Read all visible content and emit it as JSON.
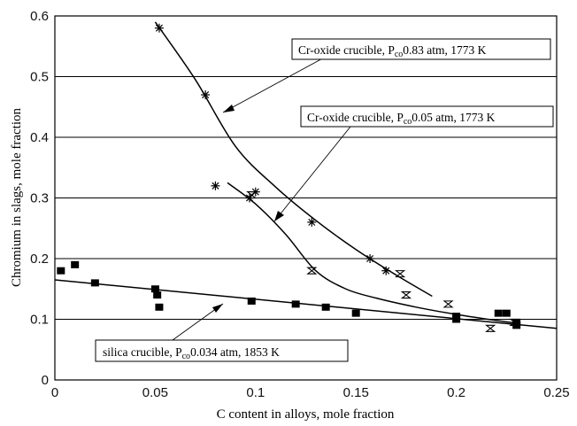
{
  "chart_data": {
    "type": "scatter",
    "xlabel": "C content in alloys, mole fraction",
    "ylabel": "Chromium in slags, mole fraction",
    "xlim": [
      0,
      0.25
    ],
    "ylim": [
      0,
      0.6
    ],
    "x_ticks": [
      "0",
      "0.05",
      "0.1",
      "0.15",
      "0.2",
      "0.25"
    ],
    "y_ticks": [
      "0",
      "0.1",
      "0.2",
      "0.3",
      "0.4",
      "0.5",
      "0.6"
    ],
    "grid": "horizontal",
    "series": [
      {
        "marker": "asterisk",
        "points": [
          [
            0.052,
            0.58
          ],
          [
            0.075,
            0.47
          ],
          [
            0.08,
            0.32
          ],
          [
            0.097,
            0.3
          ],
          [
            0.1,
            0.31
          ],
          [
            0.128,
            0.26
          ],
          [
            0.157,
            0.2
          ],
          [
            0.165,
            0.18
          ]
        ],
        "fit": [
          [
            0.05,
            0.59
          ],
          [
            0.07,
            0.495
          ],
          [
            0.09,
            0.385
          ],
          [
            0.11,
            0.318
          ],
          [
            0.13,
            0.263
          ],
          [
            0.15,
            0.215
          ],
          [
            0.17,
            0.173
          ],
          [
            0.188,
            0.138
          ]
        ]
      },
      {
        "marker": "hourglass",
        "points": [
          [
            0.098,
            0.305
          ],
          [
            0.128,
            0.18
          ],
          [
            0.172,
            0.175
          ],
          [
            0.175,
            0.14
          ],
          [
            0.196,
            0.125
          ],
          [
            0.217,
            0.085
          ],
          [
            0.229,
            0.095
          ]
        ],
        "fit": [
          [
            0.086,
            0.325
          ],
          [
            0.1,
            0.29
          ],
          [
            0.115,
            0.24
          ],
          [
            0.13,
            0.18
          ],
          [
            0.145,
            0.15
          ],
          [
            0.16,
            0.135
          ],
          [
            0.18,
            0.12
          ],
          [
            0.2,
            0.108
          ],
          [
            0.22,
            0.098
          ],
          [
            0.232,
            0.093
          ]
        ]
      },
      {
        "marker": "square",
        "points": [
          [
            0.003,
            0.18
          ],
          [
            0.01,
            0.19
          ],
          [
            0.02,
            0.16
          ],
          [
            0.05,
            0.15
          ],
          [
            0.051,
            0.14
          ],
          [
            0.052,
            0.12
          ],
          [
            0.098,
            0.13
          ],
          [
            0.12,
            0.125
          ],
          [
            0.135,
            0.12
          ],
          [
            0.15,
            0.11
          ],
          [
            0.2,
            0.105
          ],
          [
            0.2,
            0.1
          ],
          [
            0.221,
            0.11
          ],
          [
            0.225,
            0.11
          ],
          [
            0.23,
            0.095
          ],
          [
            0.23,
            0.09
          ]
        ],
        "fit": [
          [
            0,
            0.165
          ],
          [
            0.25,
            0.085
          ]
        ]
      }
    ],
    "annotations": [
      {
        "text_prefix": "Cr-oxide crucible, P",
        "subscript": "co",
        "text_suffix": "0.83 atm, 1773 K"
      },
      {
        "text_prefix": "Cr-oxide crucible, P",
        "subscript": "co",
        "text_suffix": "0.05 atm, 1773 K"
      },
      {
        "text_prefix": "silica crucible, P",
        "subscript": "co",
        "text_suffix": "0.034 atm, 1853 K"
      }
    ]
  }
}
